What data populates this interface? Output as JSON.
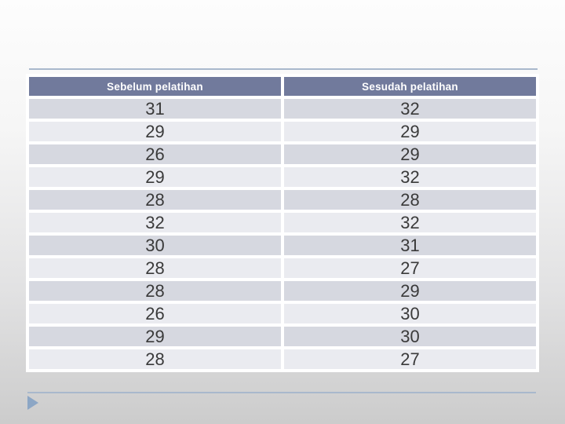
{
  "slide": {
    "colors": {
      "header_bg": "#717a9c",
      "header_fg": "#ffffff",
      "row_dark": "#d6d8e0",
      "row_light": "#eaebf0",
      "accent_line": "#a9b8cc",
      "triangle": "#8ca6c5"
    }
  },
  "table": {
    "columns": [
      "Sebelum pelatihan",
      "Sesudah pelatihan"
    ],
    "rows": [
      [
        31,
        32
      ],
      [
        29,
        29
      ],
      [
        26,
        29
      ],
      [
        29,
        32
      ],
      [
        28,
        28
      ],
      [
        32,
        32
      ],
      [
        30,
        31
      ],
      [
        28,
        27
      ],
      [
        28,
        29
      ],
      [
        26,
        30
      ],
      [
        29,
        30
      ],
      [
        28,
        27
      ]
    ]
  },
  "chart_data": {
    "type": "table",
    "title": "",
    "columns": [
      "Sebelum pelatihan",
      "Sesudah pelatihan"
    ],
    "rows": [
      [
        31,
        32
      ],
      [
        29,
        29
      ],
      [
        26,
        29
      ],
      [
        29,
        32
      ],
      [
        28,
        28
      ],
      [
        32,
        32
      ],
      [
        30,
        31
      ],
      [
        28,
        27
      ],
      [
        28,
        29
      ],
      [
        26,
        30
      ],
      [
        29,
        30
      ],
      [
        28,
        27
      ]
    ]
  }
}
